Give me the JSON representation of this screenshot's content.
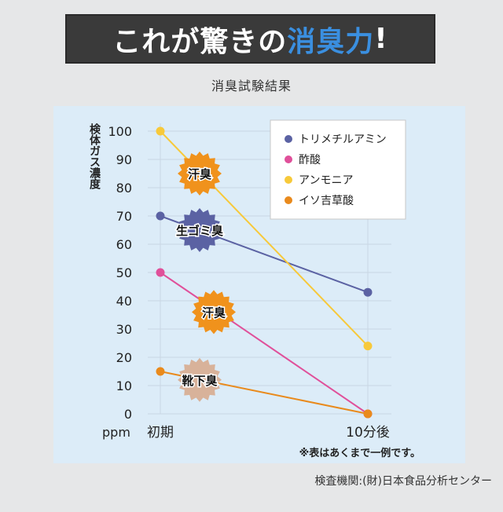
{
  "header": {
    "title_white": "これが驚きの",
    "title_highlight": "消臭力",
    "title_mark": "!"
  },
  "subtitle": "消臭試験結果",
  "footer_source": "検査機関:(財)日本食品分析センター",
  "note": "※表はあくまで一例です。",
  "colors": {
    "banner_bg": "#3a3a3a",
    "highlight": "#3a8fe0",
    "panel_bg": "#dcecf8"
  },
  "chart_data": {
    "type": "line",
    "ylabel": "検体ガス濃度",
    "unit": "ppm",
    "x": [
      "初期",
      "10分後"
    ],
    "ylim": [
      0,
      100
    ],
    "yticks": [
      "0",
      "10",
      "20",
      "30",
      "40",
      "50",
      "60",
      "70",
      "80",
      "90",
      "100"
    ],
    "grid": true,
    "legend_position": "top-right",
    "series": [
      {
        "name": "トリメチルアミン",
        "color": "#5b62a3",
        "values": [
          70,
          43
        ]
      },
      {
        "name": "酢酸",
        "color": "#e0509a",
        "values": [
          50,
          0
        ]
      },
      {
        "name": "アンモニア",
        "color": "#f7c93a",
        "values": [
          100,
          24
        ]
      },
      {
        "name": "イソ吉草酸",
        "color": "#e98a1c",
        "values": [
          15,
          0
        ]
      }
    ],
    "badges": [
      {
        "label": "汗臭",
        "series": 2,
        "color": "#f0921c"
      },
      {
        "label": "生ゴミ臭",
        "series": 0,
        "color": "#5b62a3"
      },
      {
        "label": "汗臭",
        "series": 1,
        "color": "#f0921c"
      },
      {
        "label": "靴下臭",
        "series": 3,
        "color": "#d8b29a"
      }
    ]
  }
}
